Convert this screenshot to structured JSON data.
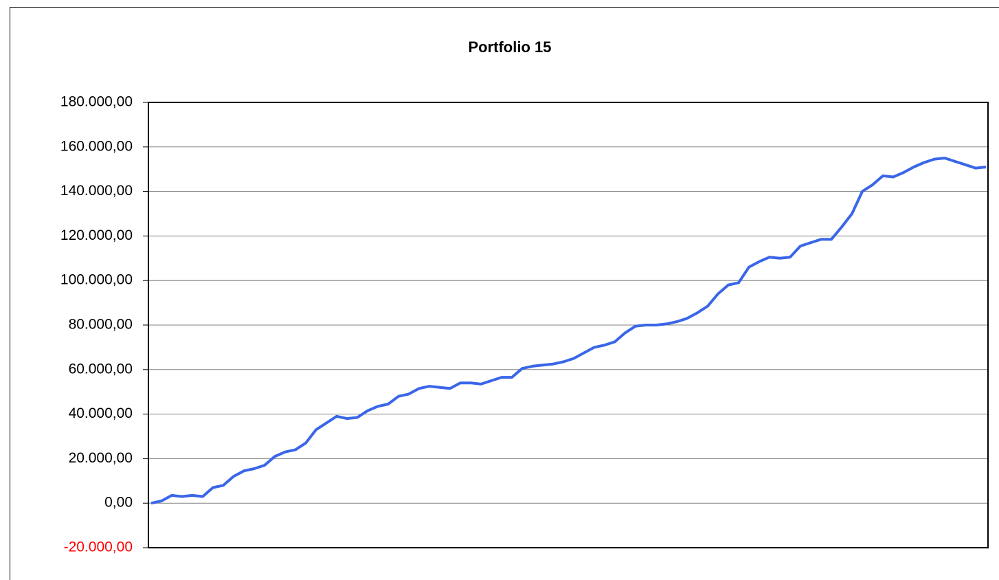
{
  "chart_data": {
    "type": "line",
    "title": "Portfolio 15",
    "values": [
      0,
      1000,
      3500,
      3000,
      3500,
      3000,
      7000,
      8000,
      12000,
      14500,
      15500,
      17000,
      21000,
      23000,
      24000,
      27000,
      33000,
      36000,
      39000,
      38000,
      38500,
      41500,
      43500,
      44500,
      48000,
      49000,
      51500,
      52500,
      52000,
      51500,
      54000,
      54000,
      53500,
      55000,
      56500,
      56500,
      60500,
      61500,
      62000,
      62500,
      63500,
      65000,
      67500,
      70000,
      71000,
      72500,
      76500,
      79500,
      80000,
      80000,
      80500,
      81500,
      83000,
      85500,
      88500,
      94000,
      98000,
      99000,
      106000,
      108500,
      110500,
      110000,
      110500,
      115500,
      117000,
      118500,
      118500,
      124000,
      130000,
      140000,
      143000,
      147000,
      146500,
      148500,
      151000,
      153000,
      154500,
      155000,
      153500,
      152000,
      150500,
      151000
    ],
    "color": "#3a66e8",
    "ylim": [
      -20000,
      180000
    ],
    "yticks": [
      {
        "value": -20000,
        "label": "-20.000,00"
      },
      {
        "value": 0,
        "label": "0,00"
      },
      {
        "value": 20000,
        "label": "20.000,00"
      },
      {
        "value": 40000,
        "label": "40.000,00"
      },
      {
        "value": 60000,
        "label": "60.000,00"
      },
      {
        "value": 80000,
        "label": "80.000,00"
      },
      {
        "value": 100000,
        "label": "100.000,00"
      },
      {
        "value": 120000,
        "label": "120.000,00"
      },
      {
        "value": 140000,
        "label": "140.000,00"
      },
      {
        "value": 160000,
        "label": "160.000,00"
      },
      {
        "value": 180000,
        "label": "180.000,00"
      }
    ],
    "grid": true,
    "negative_tick_color": "#ff0000"
  }
}
